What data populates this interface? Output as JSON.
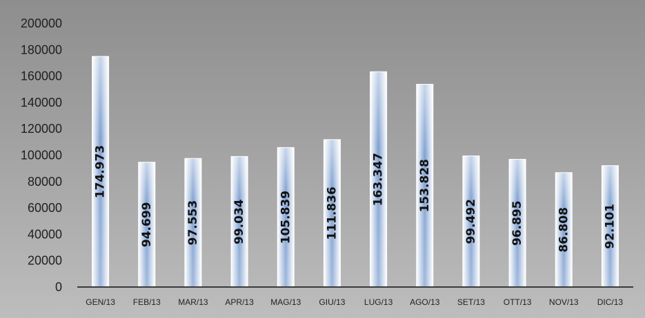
{
  "chart_data": {
    "type": "bar",
    "title": "",
    "xlabel": "",
    "ylabel": "",
    "categories": [
      "GEN/13",
      "FEB/13",
      "MAR/13",
      "APR/13",
      "MAG/13",
      "GIU/13",
      "LUG/13",
      "AGO/13",
      "SET/13",
      "OTT/13",
      "NOV/13",
      "DIC/13"
    ],
    "values": [
      174973,
      94699,
      97553,
      99034,
      105839,
      111836,
      163347,
      153828,
      99492,
      96895,
      86808,
      92101
    ],
    "data_labels": [
      "174.973",
      "94.699",
      "97.553",
      "99.034",
      "105.839",
      "111.836",
      "163.347",
      "153.828",
      "99.492",
      "96.895",
      "86.808",
      "92.101"
    ],
    "ylim": [
      0,
      200000
    ],
    "yticks": [
      "0",
      "20000",
      "40000",
      "60000",
      "80000",
      "100000",
      "120000",
      "140000",
      "160000",
      "180000",
      "200000"
    ],
    "grid": false,
    "legend": "none",
    "colors": {
      "background_top": "#8e8e8e",
      "background_bottom": "#bdbdbd",
      "bar_edge": "#ffffff",
      "bar_center": "#7fa0d0",
      "axis": "#3a3a3a"
    }
  }
}
